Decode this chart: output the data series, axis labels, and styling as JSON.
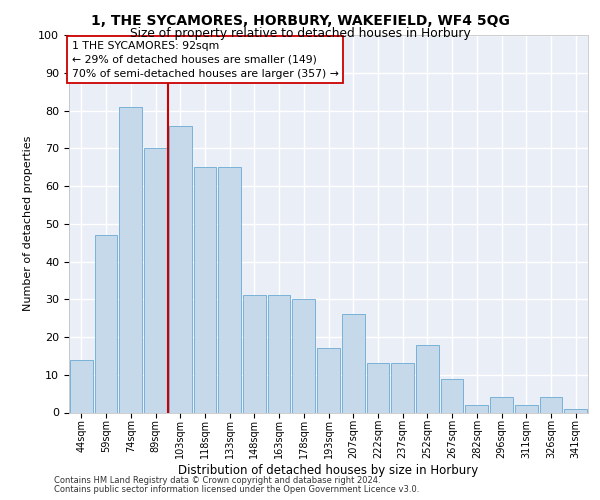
{
  "title1": "1, THE SYCAMORES, HORBURY, WAKEFIELD, WF4 5QG",
  "title2": "Size of property relative to detached houses in Horbury",
  "xlabel": "Distribution of detached houses by size in Horbury",
  "ylabel": "Number of detached properties",
  "categories": [
    "44sqm",
    "59sqm",
    "74sqm",
    "89sqm",
    "103sqm",
    "118sqm",
    "133sqm",
    "148sqm",
    "163sqm",
    "178sqm",
    "193sqm",
    "207sqm",
    "222sqm",
    "237sqm",
    "252sqm",
    "267sqm",
    "282sqm",
    "296sqm",
    "311sqm",
    "326sqm",
    "341sqm"
  ],
  "values": [
    14,
    47,
    81,
    70,
    76,
    65,
    65,
    31,
    31,
    30,
    17,
    26,
    13,
    13,
    18,
    9,
    2,
    4,
    2,
    4,
    1
  ],
  "bar_color": "#c6d9ea",
  "bar_edge_color": "#6aaad4",
  "vline_x": 3.5,
  "vline_color": "#cc0000",
  "annotation_title": "1 THE SYCAMORES: 92sqm",
  "annotation_line1": "← 29% of detached houses are smaller (149)",
  "annotation_line2": "70% of semi-detached houses are larger (357) →",
  "footer1": "Contains HM Land Registry data © Crown copyright and database right 2024.",
  "footer2": "Contains public sector information licensed under the Open Government Licence v3.0.",
  "ylim": [
    0,
    100
  ],
  "yticks": [
    0,
    10,
    20,
    30,
    40,
    50,
    60,
    70,
    80,
    90,
    100
  ],
  "background_color": "#eaeff7"
}
